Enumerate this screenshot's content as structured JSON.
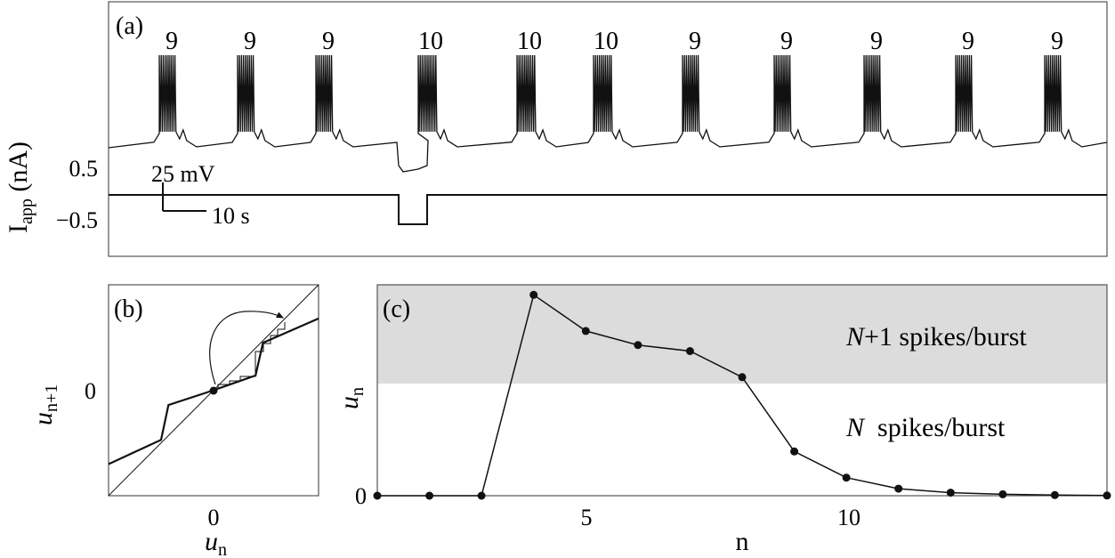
{
  "panel_a": {
    "label": "(a)",
    "ylabel": "I",
    "ylabel_sub": "app",
    "ylabel_unit": " (nA)",
    "yticks": [
      "0.5",
      "−0.5"
    ],
    "scalebar_v": "25 mV",
    "scalebar_h": "10 s",
    "spike_counts": [
      "9",
      "9",
      "9",
      "10",
      "10",
      "10",
      "9",
      "9",
      "9",
      "9",
      "9"
    ]
  },
  "panel_b": {
    "label": "(b)",
    "xlabel": "u",
    "xlabel_sub": "n",
    "ylabel": "u",
    "ylabel_sub": "n+1",
    "xtick": "0",
    "ytick": "0"
  },
  "panel_c": {
    "label": "(c)",
    "xlabel": "n",
    "ylabel": "u",
    "ylabel_sub": "n",
    "ytick": "0",
    "xticks": [
      "5",
      "10"
    ],
    "region_upper_italic": "N",
    "region_upper_text": "+1 spikes/burst",
    "region_lower_italic": "N",
    "region_lower_text": "  spikes/burst"
  },
  "chart_data": [
    {
      "type": "line",
      "title": "",
      "panel": "(a)",
      "xlabel": "",
      "ylabel": "Iapp (nA)",
      "ytick_labels": [
        "0.5",
        "−0.5"
      ],
      "bursts": [
        {
          "index": 1,
          "spikes": 9
        },
        {
          "index": 2,
          "spikes": 9
        },
        {
          "index": 3,
          "spikes": 9
        },
        {
          "index": 4,
          "spikes": 10
        },
        {
          "index": 5,
          "spikes": 10
        },
        {
          "index": 6,
          "spikes": 10
        },
        {
          "index": 7,
          "spikes": 9
        },
        {
          "index": 8,
          "spikes": 9
        },
        {
          "index": 9,
          "spikes": 9
        },
        {
          "index": 10,
          "spikes": 9
        },
        {
          "index": 11,
          "spikes": 9
        }
      ],
      "current_pulse": {
        "baseline_nA": 0,
        "pulse_nA": -0.5,
        "position": "before burst 4"
      }
    },
    {
      "type": "line",
      "panel": "(b)",
      "xlabel": "u_n",
      "ylabel": "u_n+1",
      "xlim": [
        -1,
        1
      ],
      "ylim": [
        -1,
        1
      ],
      "diagonal": [
        [
          -1,
          -1
        ],
        [
          1,
          1
        ]
      ],
      "map": [
        [
          -1,
          -0.7
        ],
        [
          -0.5,
          -0.47
        ],
        [
          -0.43,
          -0.14
        ],
        [
          0,
          0
        ],
        [
          0.4,
          0.14
        ],
        [
          0.47,
          0.45
        ],
        [
          1,
          0.68
        ]
      ]
    },
    {
      "type": "line",
      "panel": "(c)",
      "xlabel": "n",
      "ylabel": "u_n",
      "xlim": [
        1,
        15
      ],
      "ylim": [
        0,
        1.05
      ],
      "threshold": 0.66,
      "x": [
        1,
        2,
        3,
        4,
        5,
        6,
        7,
        8,
        9,
        10,
        11,
        12,
        13,
        14,
        15
      ],
      "values": [
        0,
        0,
        0,
        1.0,
        0.82,
        0.75,
        0.72,
        0.59,
        0.22,
        0.09,
        0.035,
        0.015,
        0.007,
        0.003,
        0.001
      ]
    }
  ]
}
